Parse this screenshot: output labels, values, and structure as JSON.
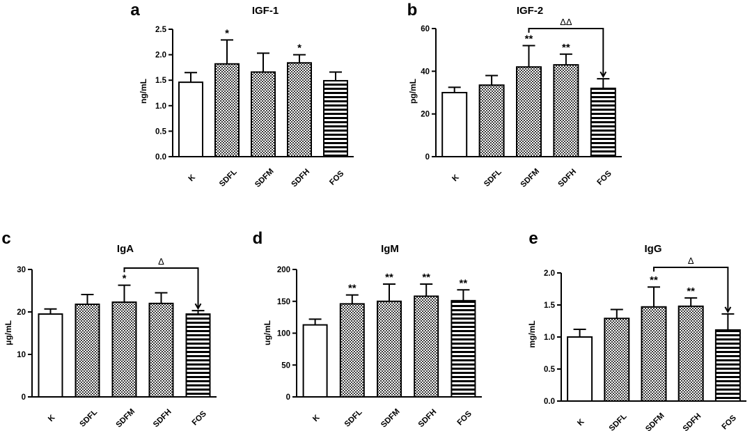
{
  "chart_data": [
    {
      "type": "bar",
      "letter": "a",
      "title": "IGF-1",
      "xlabel": "",
      "ylabel": "ng/mL",
      "ylim": [
        0,
        2.5
      ],
      "ticks": [
        "0.0",
        "0.5",
        "1.0",
        "1.5",
        "2.0",
        "2.5"
      ],
      "categories": [
        "K",
        "SDFL",
        "SDFM",
        "SDFH",
        "FOS"
      ],
      "values": [
        1.46,
        1.82,
        1.66,
        1.84,
        1.49
      ],
      "errors": [
        0.19,
        0.47,
        0.37,
        0.16,
        0.17
      ],
      "significance": [
        "",
        "*",
        "",
        "*",
        ""
      ],
      "comparison": null
    },
    {
      "type": "bar",
      "letter": "b",
      "title": "IGF-2",
      "xlabel": "",
      "ylabel": "pg/mL",
      "ylim": [
        0,
        60
      ],
      "ticks": [
        "0",
        "20",
        "40",
        "60"
      ],
      "categories": [
        "K",
        "SDFL",
        "SDFM",
        "SDFH",
        "FOS"
      ],
      "values": [
        30,
        33.5,
        42,
        43,
        32
      ],
      "errors": [
        2.5,
        4.5,
        10,
        5,
        4.5
      ],
      "significance": [
        "",
        "",
        "**",
        "**",
        ""
      ],
      "comparison": {
        "from": 2,
        "to": 4,
        "label": "ΔΔ"
      }
    },
    {
      "type": "bar",
      "letter": "c",
      "title": "IgA",
      "xlabel": "",
      "ylabel": "μg/mL",
      "ylim": [
        0,
        30
      ],
      "ticks": [
        "0",
        "10",
        "20",
        "30"
      ],
      "categories": [
        "K",
        "SDFL",
        "SDFM",
        "SDFH",
        "FOS"
      ],
      "values": [
        19.5,
        21.8,
        22.3,
        22.0,
        19.5
      ],
      "errors": [
        1.2,
        2.3,
        4.0,
        2.5,
        0.8
      ],
      "significance": [
        "",
        "",
        "*",
        "",
        ""
      ],
      "comparison": {
        "from": 2,
        "to": 4,
        "label": "Δ"
      }
    },
    {
      "type": "bar",
      "letter": "d",
      "title": "IgM",
      "xlabel": "",
      "ylabel": "ug/mL",
      "ylim": [
        0,
        200
      ],
      "ticks": [
        "0",
        "50",
        "100",
        "150",
        "200"
      ],
      "categories": [
        "K",
        "SDFL",
        "SDFM",
        "SDFH",
        "FOS"
      ],
      "values": [
        113,
        146,
        150,
        158,
        151
      ],
      "errors": [
        9,
        14,
        27,
        19,
        17
      ],
      "significance": [
        "",
        "**",
        "**",
        "**",
        "**"
      ],
      "comparison": null
    },
    {
      "type": "bar",
      "letter": "e",
      "title": "IgG",
      "xlabel": "",
      "ylabel": "mg/mL",
      "ylim": [
        0,
        2.0
      ],
      "ticks": [
        "0.0",
        "0.5",
        "1.0",
        "1.5",
        "2.0"
      ],
      "categories": [
        "K",
        "SDFL",
        "SDFM",
        "SDFH",
        "FOS"
      ],
      "values": [
        1.0,
        1.29,
        1.47,
        1.48,
        1.11
      ],
      "errors": [
        0.12,
        0.14,
        0.31,
        0.13,
        0.25
      ],
      "significance": [
        "",
        "",
        "**",
        "**",
        ""
      ],
      "comparison": {
        "from": 2,
        "to": 4,
        "label": "Δ"
      }
    }
  ]
}
